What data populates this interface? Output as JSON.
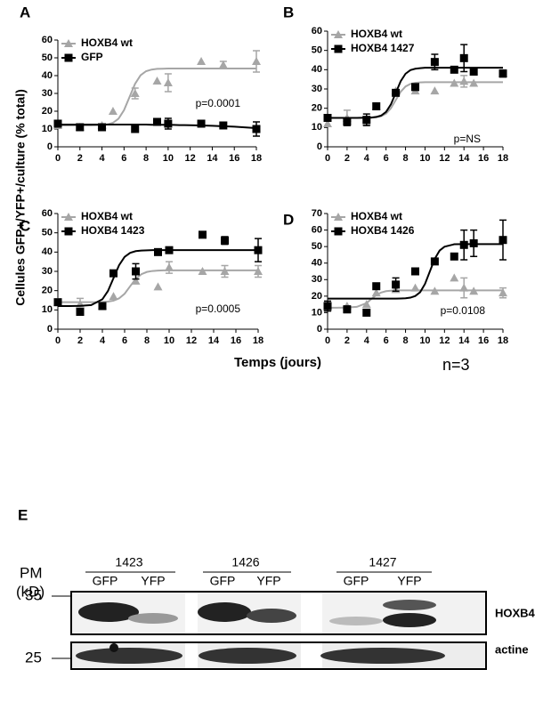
{
  "figure": {
    "y_label": "Cellules GFP+/YFP+/culture (% total)",
    "x_label": "Temps (jours)",
    "n_label": "n=3",
    "blot": {
      "panel_label": "E",
      "pm_label": "PM",
      "kd_label": "(kD)",
      "markers": [
        "35",
        "25"
      ],
      "groups": [
        {
          "name": "1423",
          "lanes": [
            "GFP",
            "YFP"
          ]
        },
        {
          "name": "1426",
          "lanes": [
            "GFP",
            "YFP"
          ]
        },
        {
          "name": "1427",
          "lanes": [
            "GFP",
            "YFP"
          ]
        }
      ],
      "rows": [
        "HOXB4",
        "actine"
      ]
    }
  },
  "chart_data": [
    {
      "type": "scatter",
      "panel_label": "A",
      "annotation": "p=0.0001",
      "xlim": [
        0,
        18
      ],
      "xticks": [
        0,
        2,
        4,
        6,
        8,
        10,
        12,
        14,
        16,
        18
      ],
      "ylim": [
        0,
        60
      ],
      "yticks": [
        0,
        10,
        20,
        30,
        40,
        50,
        60
      ],
      "series": [
        {
          "name": "HOXB4 wt",
          "color": "#a6a6a6",
          "marker": "triangle",
          "x": [
            0,
            2,
            4,
            5,
            7,
            9,
            10,
            13,
            15,
            18
          ],
          "values": [
            12,
            11,
            12,
            20,
            30,
            37,
            36,
            48,
            46,
            48
          ],
          "errors": [
            null,
            null,
            null,
            null,
            3,
            null,
            5,
            null,
            2,
            6
          ],
          "fit": {
            "x": [
              0,
              1,
              2,
              3,
              4,
              4.5,
              5,
              5.5,
              6,
              6.5,
              7,
              7.5,
              8,
              8.5,
              9,
              9.5,
              10,
              10.5,
              11,
              11.5,
              12,
              13,
              14,
              16,
              18
            ],
            "values": [
              12,
              12,
              12,
              12,
              12.2,
              12.6,
              13.5,
              15.8,
              20.6,
              28,
              35.4,
              40.2,
              42.5,
              43.4,
              43.8,
              43.9,
              44,
              44,
              44,
              44,
              44,
              44,
              44,
              44,
              44
            ]
          }
        },
        {
          "name": "GFP",
          "color": "#000000",
          "marker": "square",
          "x": [
            0,
            2,
            4,
            7,
            9,
            10,
            13,
            15,
            18
          ],
          "values": [
            13,
            11,
            11,
            10,
            14,
            13,
            13,
            12,
            10
          ],
          "errors": [
            null,
            null,
            null,
            null,
            null,
            3,
            null,
            null,
            4
          ],
          "fit": {
            "x": [
              0,
              1,
              2,
              3,
              4,
              4.5,
              5,
              5.5,
              6,
              6.5,
              7,
              7.5,
              8,
              8.5,
              9,
              9.5,
              10,
              10.5,
              11,
              11.5,
              12,
              13,
              14,
              16,
              18
            ],
            "values": [
              12.5,
              12.5,
              12.5,
              12.5,
              12.5,
              12.5,
              12.5,
              12.5,
              12.5,
              12.5,
              12.5,
              12.5,
              12.5,
              12.4,
              12.4,
              12.4,
              12.3,
              12.3,
              12.2,
              12.2,
              12.1,
              12,
              11.8,
              11.3,
              10.5
            ]
          }
        }
      ]
    },
    {
      "type": "scatter",
      "panel_label": "B",
      "annotation": "p=NS",
      "xlim": [
        0,
        18
      ],
      "xticks": [
        0,
        2,
        4,
        6,
        8,
        10,
        12,
        14,
        16,
        18
      ],
      "ylim": [
        0,
        60
      ],
      "yticks": [
        0,
        10,
        20,
        30,
        40,
        50,
        60
      ],
      "series": [
        {
          "name": "HOXB4 wt",
          "color": "#a6a6a6",
          "marker": "triangle",
          "x": [
            0,
            2,
            4,
            5,
            7,
            9,
            11,
            13,
            14,
            15,
            18
          ],
          "values": [
            12,
            15,
            13,
            21,
            29,
            29,
            29,
            33,
            34,
            33,
            38
          ],
          "errors": [
            null,
            4,
            2,
            null,
            null,
            null,
            null,
            null,
            3,
            null,
            2
          ],
          "fit": {
            "x": [
              0,
              1,
              2,
              3,
              4,
              4.5,
              5,
              5.5,
              6,
              6.5,
              7,
              7.5,
              8,
              8.5,
              9,
              9.5,
              10,
              10.5,
              11,
              11.5,
              12,
              13,
              14,
              16,
              18
            ],
            "values": [
              15,
              15,
              15,
              15,
              15.05,
              15.1,
              15.3,
              15.9,
              17.2,
              20,
              24.3,
              28.5,
              31.3,
              32.6,
              33.2,
              33.4,
              33.5,
              33.5,
              33.5,
              33.5,
              33.5,
              33.5,
              33.5,
              33.5,
              33.5
            ]
          }
        },
        {
          "name": "HOXB4 1427",
          "color": "#000000",
          "marker": "square",
          "x": [
            0,
            2,
            4,
            5,
            7,
            9,
            11,
            13,
            14,
            15,
            18
          ],
          "values": [
            15,
            13,
            14,
            21,
            28,
            31,
            44,
            40,
            46,
            39,
            38
          ],
          "errors": [
            null,
            2,
            3,
            null,
            null,
            null,
            4,
            null,
            7,
            null,
            null
          ],
          "fit": {
            "x": [
              0,
              1,
              2,
              3,
              4,
              4.5,
              5,
              5.5,
              6,
              6.5,
              7,
              7.5,
              8,
              8.5,
              9,
              9.5,
              10,
              10.5,
              11,
              11.5,
              12,
              13,
              14,
              16,
              18
            ],
            "values": [
              15,
              15,
              15,
              15,
              15.1,
              15.2,
              15.5,
              16.2,
              18.1,
              22,
              28,
              34,
              37.9,
              39.8,
              40.5,
              40.8,
              41,
              41,
              41,
              41,
              41,
              41,
              41,
              41,
              41
            ]
          }
        }
      ]
    },
    {
      "type": "scatter",
      "panel_label": "C",
      "annotation": "p=0.0005",
      "xlim": [
        0,
        18
      ],
      "xticks": [
        0,
        2,
        4,
        6,
        8,
        10,
        12,
        14,
        16,
        18
      ],
      "ylim": [
        0,
        60
      ],
      "yticks": [
        0,
        10,
        20,
        30,
        40,
        50,
        60
      ],
      "series": [
        {
          "name": "HOXB4 wt",
          "color": "#a6a6a6",
          "marker": "triangle",
          "x": [
            0,
            2,
            4,
            5,
            7,
            9,
            10,
            13,
            15,
            18
          ],
          "values": [
            14,
            13,
            12,
            17,
            25,
            22,
            32,
            30,
            30,
            30
          ],
          "errors": [
            null,
            3,
            null,
            null,
            null,
            null,
            3,
            null,
            3,
            3
          ],
          "fit": {
            "x": [
              0,
              1,
              2,
              3,
              4,
              4.5,
              5,
              5.5,
              6,
              6.5,
              7,
              7.5,
              8,
              8.5,
              9,
              9.5,
              10,
              10.5,
              11,
              11.5,
              12,
              13,
              14,
              16,
              18
            ],
            "values": [
              14,
              14,
              14,
              14,
              14.1,
              14.3,
              14.8,
              16,
              18.4,
              22.3,
              26.1,
              28.5,
              29.7,
              30.2,
              30.4,
              30.5,
              30.5,
              30.5,
              30.5,
              30.5,
              30.5,
              30.5,
              30.5,
              30.5,
              30.5
            ]
          }
        },
        {
          "name": "HOXB4 1423",
          "color": "#000000",
          "marker": "square",
          "x": [
            0,
            2,
            4,
            5,
            7,
            9,
            10,
            13,
            15,
            18
          ],
          "values": [
            14,
            9,
            12,
            29,
            30,
            40,
            41,
            49,
            46,
            41
          ],
          "errors": [
            null,
            null,
            null,
            null,
            4,
            null,
            null,
            null,
            2,
            6
          ],
          "fit": {
            "x": [
              0,
              1,
              2,
              3,
              4,
              4.5,
              5,
              5.5,
              6,
              6.5,
              7,
              7.5,
              8,
              8.5,
              9,
              9.5,
              10,
              10.5,
              11,
              11.5,
              12,
              13,
              14,
              16,
              18
            ],
            "values": [
              12,
              12,
              12.1,
              12.5,
              15.5,
              19.8,
              26.5,
              33.2,
              37.5,
              39.6,
              40.5,
              40.8,
              40.9,
              41,
              41,
              41,
              41,
              41,
              41,
              41,
              41,
              41,
              41,
              41,
              41
            ]
          }
        }
      ]
    },
    {
      "type": "scatter",
      "panel_label": "D",
      "annotation": "p=0.0108",
      "xlim": [
        0,
        18
      ],
      "xticks": [
        0,
        2,
        4,
        6,
        8,
        10,
        12,
        14,
        16,
        18
      ],
      "ylim": [
        0,
        70
      ],
      "yticks": [
        0,
        10,
        20,
        30,
        40,
        50,
        60,
        70
      ],
      "series": [
        {
          "name": "HOXB4 wt",
          "color": "#a6a6a6",
          "marker": "triangle",
          "x": [
            0,
            2,
            4,
            5,
            7,
            9,
            11,
            13,
            14,
            15,
            18
          ],
          "values": [
            13,
            14,
            15,
            22,
            24,
            25,
            23,
            31,
            25,
            23,
            22
          ],
          "errors": [
            null,
            null,
            null,
            null,
            null,
            null,
            null,
            null,
            6,
            null,
            3
          ],
          "fit": {
            "x": [
              0,
              1,
              2,
              3,
              4,
              4.5,
              5,
              5.5,
              6,
              6.5,
              7,
              7.5,
              8,
              8.5,
              9,
              9.5,
              10,
              10.5,
              11,
              11.5,
              12,
              13,
              14,
              16,
              18
            ],
            "values": [
              13,
              13,
              13.1,
              13.5,
              15.8,
              18.3,
              20.7,
              22.2,
              23,
              23.3,
              23.4,
              23.5,
              23.5,
              23.5,
              23.5,
              23.5,
              23.5,
              23.5,
              23.5,
              23.5,
              23.5,
              23.5,
              23.5,
              23.5,
              23.5
            ]
          }
        },
        {
          "name": "HOXB4 1426",
          "color": "#000000",
          "marker": "square",
          "x": [
            0,
            2,
            4,
            5,
            7,
            9,
            11,
            13,
            14,
            15,
            18
          ],
          "values": [
            14,
            12,
            10,
            26,
            27,
            35,
            41,
            44,
            51,
            52,
            54
          ],
          "errors": [
            3,
            2,
            null,
            null,
            4,
            null,
            null,
            null,
            9,
            8,
            12
          ],
          "fit": {
            "x": [
              0,
              1,
              2,
              3,
              4,
              4.5,
              5,
              5.5,
              6,
              6.5,
              7,
              7.5,
              8,
              8.5,
              9,
              9.5,
              10,
              10.5,
              11,
              11.5,
              12,
              13,
              14,
              16,
              18
            ],
            "values": [
              18.5,
              18.5,
              18.5,
              18.5,
              18.5,
              18.5,
              18.5,
              18.5,
              18.5,
              18.5,
              18.5,
              18.6,
              18.7,
              19.1,
              20.1,
              22.4,
              27.4,
              35,
              42.6,
              47.6,
              49.9,
              51.4,
              51.5,
              51.5,
              51.5
            ]
          }
        }
      ]
    }
  ]
}
